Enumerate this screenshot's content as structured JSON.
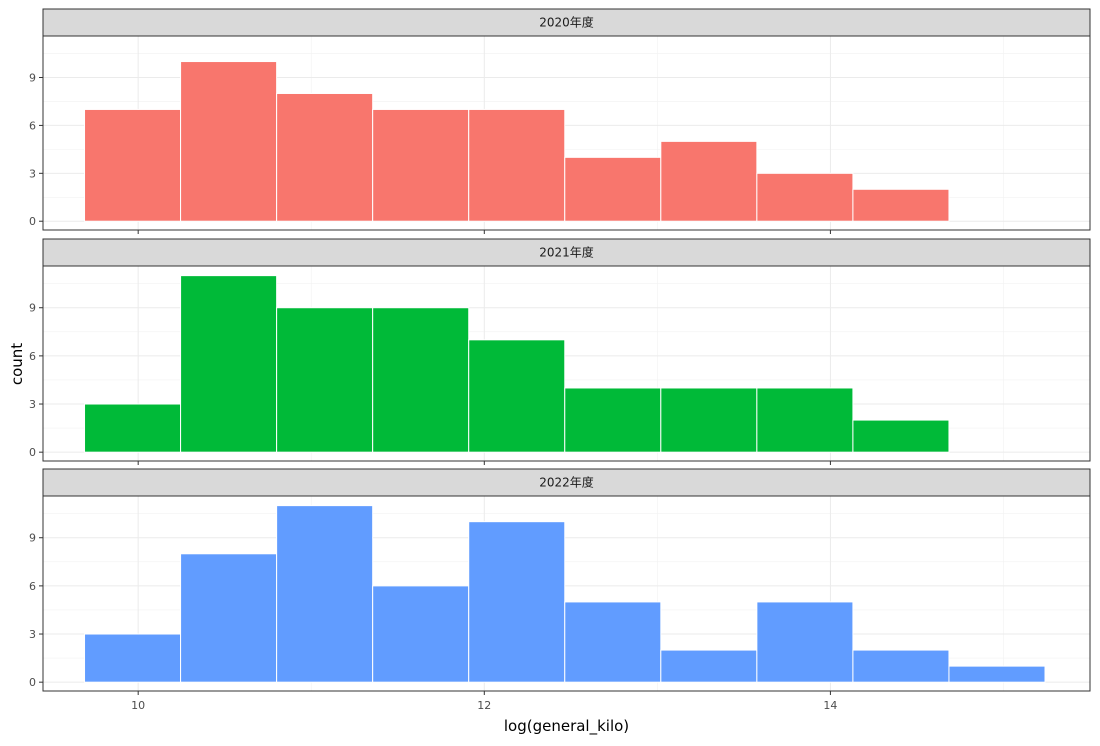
{
  "chart_data": {
    "type": "bar",
    "subtype": "faceted-histogram",
    "xlabel": "log(general_kilo)",
    "ylabel": "count",
    "xlim": [
      9.45,
      15.5
    ],
    "ylim": [
      -0.55,
      11.6
    ],
    "x_ticks": [
      10,
      12,
      14
    ],
    "x_tick_labels": [
      "10",
      "12",
      "14"
    ],
    "y_ticks": [
      0,
      3,
      6,
      9
    ],
    "y_tick_labels": [
      "0",
      "3",
      "6",
      "9"
    ],
    "grid": true,
    "bin_edges": [
      9.69,
      10.245,
      10.8,
      11.355,
      11.91,
      12.465,
      13.02,
      13.575,
      14.13,
      14.685,
      15.24
    ],
    "facets": [
      {
        "label": "2020年度",
        "color": "#F8766D",
        "values": [
          7,
          10,
          8,
          7,
          7,
          4,
          5,
          3,
          2,
          0
        ]
      },
      {
        "label": "2021年度",
        "color": "#00BA38",
        "values": [
          3,
          11,
          9,
          9,
          7,
          4,
          4,
          4,
          2,
          0
        ]
      },
      {
        "label": "2022年度",
        "color": "#619CFF",
        "values": [
          3,
          8,
          11,
          6,
          10,
          5,
          2,
          5,
          2,
          1
        ]
      }
    ]
  }
}
